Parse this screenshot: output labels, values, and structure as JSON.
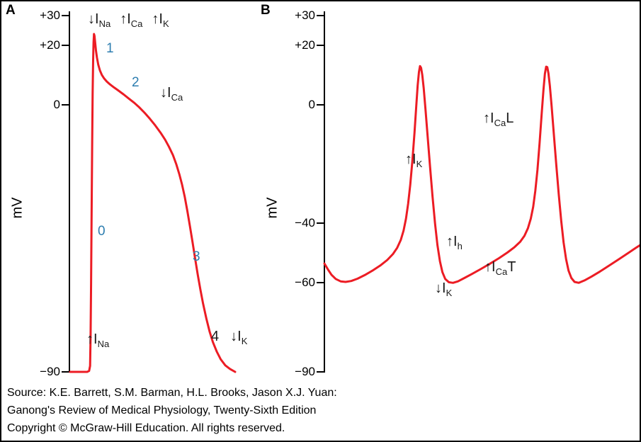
{
  "figure": {
    "panelA_label": "A",
    "panelB_label": "B",
    "ylabel": "mV"
  },
  "panelA": {
    "yticks": [
      "+30",
      "+20",
      "0",
      "−90"
    ],
    "phases": {
      "p0": "0",
      "p1": "1",
      "p2": "2",
      "p3": "3",
      "p4": "4"
    },
    "currents": {
      "top_na": {
        "arrow": "↓",
        "base": "I",
        "sub": "Na"
      },
      "top_ca": {
        "arrow": "↑",
        "base": "I",
        "sub": "Ca"
      },
      "top_k": {
        "arrow": "↑",
        "base": "I",
        "sub": "K"
      },
      "plateau_ca": {
        "arrow": "↓",
        "base": "I",
        "sub": "Ca"
      },
      "upstroke_na": {
        "arrow": "↑",
        "base": "I",
        "sub": "Na"
      },
      "phase4_k": {
        "arrow": "↓",
        "base": "I",
        "sub": "K"
      }
    }
  },
  "panelB": {
    "yticks": [
      "+30",
      "+20",
      "0",
      "−40",
      "−60",
      "−90"
    ],
    "currents": {
      "k_repol": {
        "arrow": "↑",
        "base": "I",
        "sub": "K"
      },
      "ca_l": {
        "arrow": "↑",
        "base": "I",
        "sub": "Ca",
        "suffix": "L"
      },
      "h_funny": {
        "arrow": "↑",
        "base": "I",
        "sub": "h"
      },
      "k_decay": {
        "arrow": "↓",
        "base": "I",
        "sub": "K"
      },
      "ca_t": {
        "arrow": "↑",
        "base": "I",
        "sub": "Ca",
        "suffix": "T"
      }
    }
  },
  "source": {
    "line1": "Source: K.E. Barrett, S.M. Barman, H.L. Brooks, Jason X.J. Yuan:",
    "line2": "Ganong's Review of Medical Physiology, Twenty-Sixth Edition",
    "line3": "Copyright © McGraw-Hill Education. All rights reserved."
  },
  "chart_data": [
    {
      "type": "line",
      "panel": "A",
      "title": "Ventricular action potential (phases 0–4)",
      "ylabel": "mV",
      "ylim": [
        -90,
        30
      ],
      "yticks": [
        30,
        20,
        0,
        -90
      ],
      "line_color": "#ec1c24",
      "grid": false,
      "phase_labels": [
        "0",
        "1",
        "2",
        "3",
        "4"
      ],
      "current_annotations": [
        "↓I_Na",
        "↑I_Ca",
        "↑I_K",
        "↓I_Ca",
        "↑I_Na",
        "4 ↓I_K"
      ],
      "x": [
        0,
        26,
        29,
        30.5,
        31.3,
        32,
        32.8,
        33.6,
        34.4,
        35.1,
        35.8,
        36.4,
        37.2,
        38.2,
        39.5,
        41,
        43,
        45.5,
        48.5,
        52,
        56,
        61,
        67,
        74,
        82,
        90,
        98,
        106,
        114,
        122,
        130,
        138,
        145,
        151,
        157,
        162,
        167,
        171,
        175,
        179,
        183,
        187,
        191,
        195,
        199,
        203,
        208,
        213,
        218,
        224,
        230,
        237,
        244,
        252
      ],
      "y": [
        -90,
        -90,
        -89.7,
        -88,
        -78,
        -60,
        -38,
        -14,
        4,
        15,
        21,
        23.8,
        23.2,
        21,
        18.2,
        15.8,
        13.4,
        11.5,
        10,
        8.8,
        7.8,
        6.8,
        5.8,
        4.7,
        3.4,
        2,
        0.6,
        -1,
        -2.8,
        -4.8,
        -7,
        -9.4,
        -11.8,
        -14.2,
        -17,
        -20,
        -23.6,
        -27,
        -31,
        -35.8,
        -41,
        -46.4,
        -52,
        -57.4,
        -62.4,
        -67,
        -72,
        -76.4,
        -80,
        -83.2,
        -85.8,
        -87.8,
        -89,
        -90
      ]
    },
    {
      "type": "line",
      "panel": "B",
      "title": "Pacemaker action potential",
      "ylabel": "mV",
      "ylim": [
        -90,
        30
      ],
      "yticks": [
        30,
        20,
        0,
        -40,
        -60,
        -90
      ],
      "line_color": "#ec1c24",
      "grid": false,
      "current_annotations": [
        "↑I_K",
        "↑I_Ca L",
        "↑I_h",
        "↓I_K",
        "↑I_Ca T"
      ],
      "x": [
        0,
        5,
        10,
        16,
        23,
        30,
        38,
        47,
        57,
        68,
        79,
        89,
        97,
        103,
        108,
        112,
        115.5,
        118.5,
        121.5,
        124.5,
        127.5,
        130,
        132,
        133.8,
        135.3,
        136.8,
        138.5,
        140.5,
        143,
        146,
        149.5,
        153,
        156.5,
        160,
        163.5,
        167,
        171,
        176,
        182,
        189,
        198,
        209,
        221,
        234,
        247,
        259,
        269,
        277,
        283,
        288,
        292,
        295.5,
        298.5,
        301.5,
        304.5,
        307.5,
        310,
        312,
        313.8,
        315.4,
        317,
        319,
        321.5,
        324.5,
        328,
        331.5,
        335,
        338.5,
        342,
        345.5,
        349.5,
        354,
        360,
        368,
        378,
        390,
        403,
        417,
        431,
        441,
        450
      ],
      "y": [
        -53.5,
        -55.5,
        -57.3,
        -58.7,
        -59.5,
        -59.7,
        -59.4,
        -58.6,
        -57.4,
        -55.9,
        -54.2,
        -52.3,
        -50.3,
        -48.2,
        -45.6,
        -42.4,
        -38.4,
        -33.4,
        -27,
        -19,
        -9.5,
        -0.5,
        6.5,
        11,
        13,
        12.4,
        10,
        5.6,
        -1.5,
        -10.5,
        -21,
        -31,
        -40,
        -47.3,
        -52.7,
        -56.4,
        -58.7,
        -59.8,
        -60,
        -59.5,
        -58.4,
        -57,
        -55.4,
        -53.6,
        -51.7,
        -49.8,
        -48,
        -46.2,
        -44.2,
        -41.6,
        -38.4,
        -34.4,
        -29,
        -22,
        -13,
        -3,
        5,
        10.4,
        12.8,
        12.6,
        10.6,
        6.4,
        -0.5,
        -9.5,
        -20,
        -30,
        -39,
        -46.4,
        -52,
        -55.9,
        -58.4,
        -59.7,
        -60,
        -59.2,
        -57.9,
        -56.2,
        -54.2,
        -52,
        -49.8,
        -48.2,
        -46.8
      ]
    }
  ]
}
